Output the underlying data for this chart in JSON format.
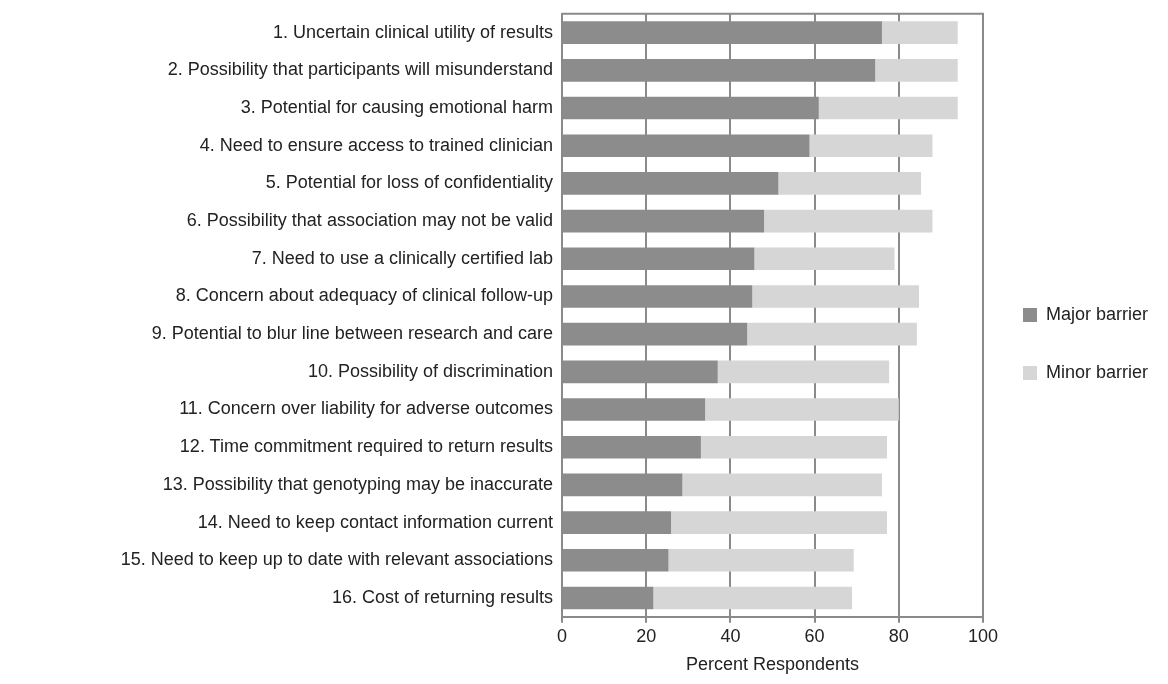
{
  "chart_data": {
    "type": "bar",
    "orientation": "horizontal",
    "stacked": true,
    "xlabel": "Percent Respondents",
    "categories": [
      "1. Uncertain clinical utility of results",
      "2. Possibility that participants will misunderstand",
      "3. Potential for causing emotional harm",
      "4. Need to ensure access to trained clinician",
      "5. Potential for loss of confidentiality",
      "6. Possibility that association may not be valid",
      "7. Need to use a clinically certified lab",
      "8. Concern about adequacy of clinical follow-up",
      "9. Potential to blur line between research and care",
      "10. Possibility of discrimination",
      "11. Concern over liability for adverse outcomes",
      "12. Time commitment required to return results",
      "13. Possibility that genotyping may be inaccurate",
      "14. Need to keep contact information current",
      "15. Need to keep up to date with relevant associations",
      "16. Cost of returning results"
    ],
    "series": [
      {
        "name": "Major barrier",
        "color": "#8c8c8c",
        "values": [
          76,
          74.4,
          61,
          58.8,
          51.4,
          48,
          45.7,
          45.2,
          44,
          37,
          34,
          33,
          28.6,
          25.9,
          25.3,
          21.7
        ]
      },
      {
        "name": "Minor barrier",
        "color": "#d6d6d6",
        "values": [
          18,
          19.6,
          33,
          29.2,
          33.9,
          40,
          33.3,
          39.6,
          40.3,
          40.7,
          46,
          44.2,
          47.4,
          51.3,
          44,
          47.2
        ]
      }
    ],
    "xlim": [
      0,
      100
    ],
    "xticks": [
      0,
      20,
      40,
      60,
      80,
      100
    ],
    "grid": "x",
    "legend": "right"
  }
}
